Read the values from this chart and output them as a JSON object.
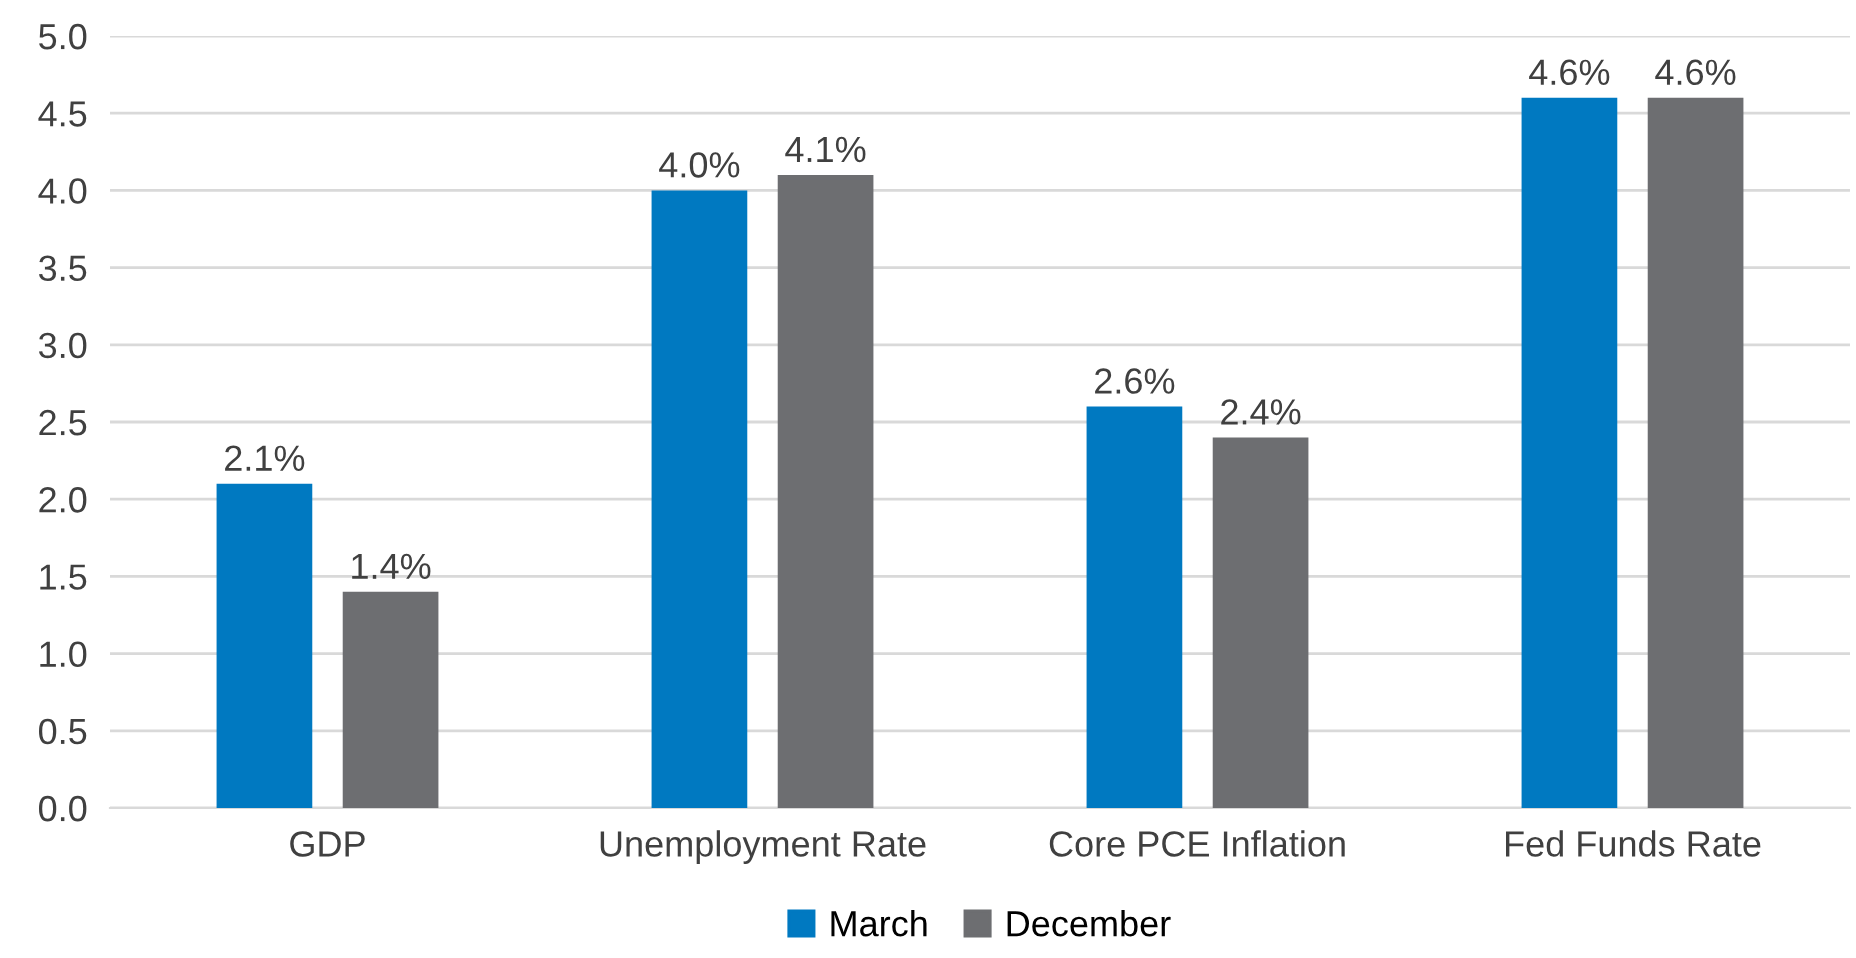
{
  "chart_data": {
    "type": "bar",
    "categories": [
      "GDP",
      "Unemployment Rate",
      "Core PCE Inflation",
      "Fed Funds Rate"
    ],
    "series": [
      {
        "name": "March",
        "color": "#0079c1",
        "values": [
          2.1,
          4.0,
          2.6,
          4.6
        ],
        "value_labels": [
          "2.1%",
          "4.0%",
          "2.6%",
          "4.6%"
        ]
      },
      {
        "name": "December",
        "color": "#6d6e71",
        "values": [
          1.4,
          4.1,
          2.4,
          4.6
        ],
        "value_labels": [
          "1.4%",
          "4.1%",
          "2.4%",
          "4.6%"
        ]
      }
    ],
    "ylim": [
      0,
      5
    ],
    "yticks": [
      {
        "value": 0,
        "label": "0.0"
      },
      {
        "value": 0.5,
        "label": "0.5"
      },
      {
        "value": 1,
        "label": "1.0"
      },
      {
        "value": 1.5,
        "label": "1.5"
      },
      {
        "value": 2,
        "label": "2.0"
      },
      {
        "value": 2.5,
        "label": "2.5"
      },
      {
        "value": 3,
        "label": "3.0"
      },
      {
        "value": 3.5,
        "label": "3.5"
      },
      {
        "value": 4,
        "label": "4.0"
      },
      {
        "value": 4.5,
        "label": "4.5"
      },
      {
        "value": 5,
        "label": "5.0"
      }
    ],
    "grid": "y",
    "legend": "bottom"
  }
}
